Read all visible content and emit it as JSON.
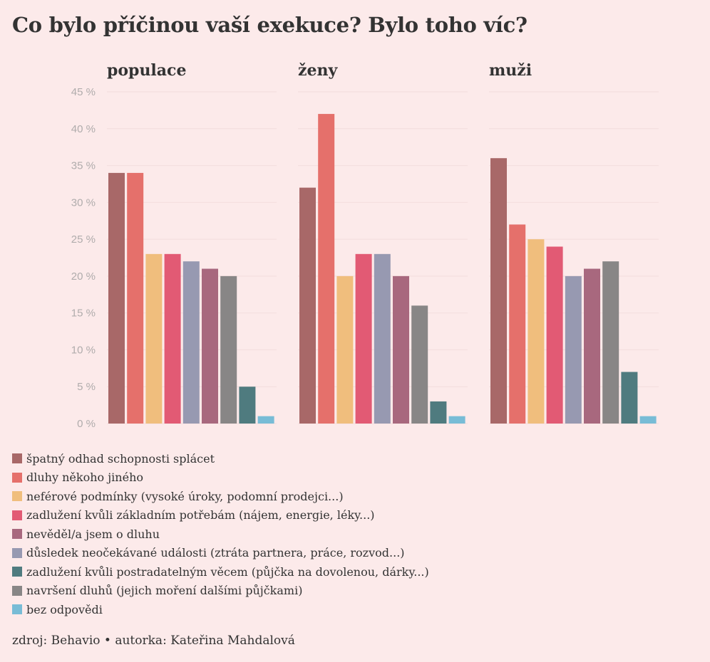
{
  "title": "Co bylo příčinou vaší exekuce? Bylo toho víc?",
  "source": "zdroj: Behavio • autorka: Kateřina Mahdalová",
  "chart_data": {
    "type": "bar",
    "y_ticks": [
      "0 %",
      "5 %",
      "10 %",
      "15 %",
      "20 %",
      "25 %",
      "30 %",
      "35 %",
      "40 %",
      "45 %"
    ],
    "ylim": [
      0,
      45
    ],
    "grid": true,
    "legend_placement": "bottom",
    "categories": [
      "špatný odhad schopnosti splácet",
      "dluhy někoho jiného",
      "neférové podmínky (vysoké úroky, podomní prodejci...)",
      "zadlužení kvůli základním potřebám (nájem, energie, léky...)",
      "důsledek neočekávané události (ztráta partnera, práce, rozvod...)",
      "nevěděl/a jsem o dluhu",
      "navršení dluhů (jejich moření dalšími půjčkami)",
      "zadlužení kvůli postradatelným věcem (půjčka na dovolenou, dárky...)",
      "bez odpovědi"
    ],
    "colors": [
      "#a86868",
      "#e5706b",
      "#f0be7d",
      "#e25a74",
      "#9799b1",
      "#a8687e",
      "#888686",
      "#4f7b7f",
      "#78bcd6"
    ],
    "series": [
      {
        "name": "populace",
        "values": [
          34,
          34,
          23,
          23,
          22,
          21,
          20,
          5,
          1
        ]
      },
      {
        "name": "ženy",
        "values": [
          32,
          42,
          20,
          23,
          23,
          20,
          16,
          3,
          1
        ]
      },
      {
        "name": "muži",
        "values": [
          36,
          27,
          25,
          24,
          20,
          21,
          22,
          7,
          1
        ]
      }
    ]
  },
  "legend": [
    {
      "label": "špatný odhad schopnosti splácet",
      "color": "#a86868"
    },
    {
      "label": "dluhy někoho jiného",
      "color": "#e5706b"
    },
    {
      "label": "neférové podmínky (vysoké úroky, podomní prodejci...)",
      "color": "#f0be7d"
    },
    {
      "label": "zadlužení kvůli základním potřebám (nájem, energie, léky...)",
      "color": "#e25a74"
    },
    {
      "label": "nevěděl/a jsem o dluhu",
      "color": "#a8687e"
    },
    {
      "label": "důsledek neočekávané události (ztráta partnera, práce, rozvod...)",
      "color": "#9799b1"
    },
    {
      "label": "zadlužení kvůli postradatelným věcem (půjčka na dovolenou, dárky...)",
      "color": "#4f7b7f"
    },
    {
      "label": "navršení dluhů (jejich moření dalšími půjčkami)",
      "color": "#888686"
    },
    {
      "label": "bez odpovědi",
      "color": "#78bcd6"
    }
  ]
}
